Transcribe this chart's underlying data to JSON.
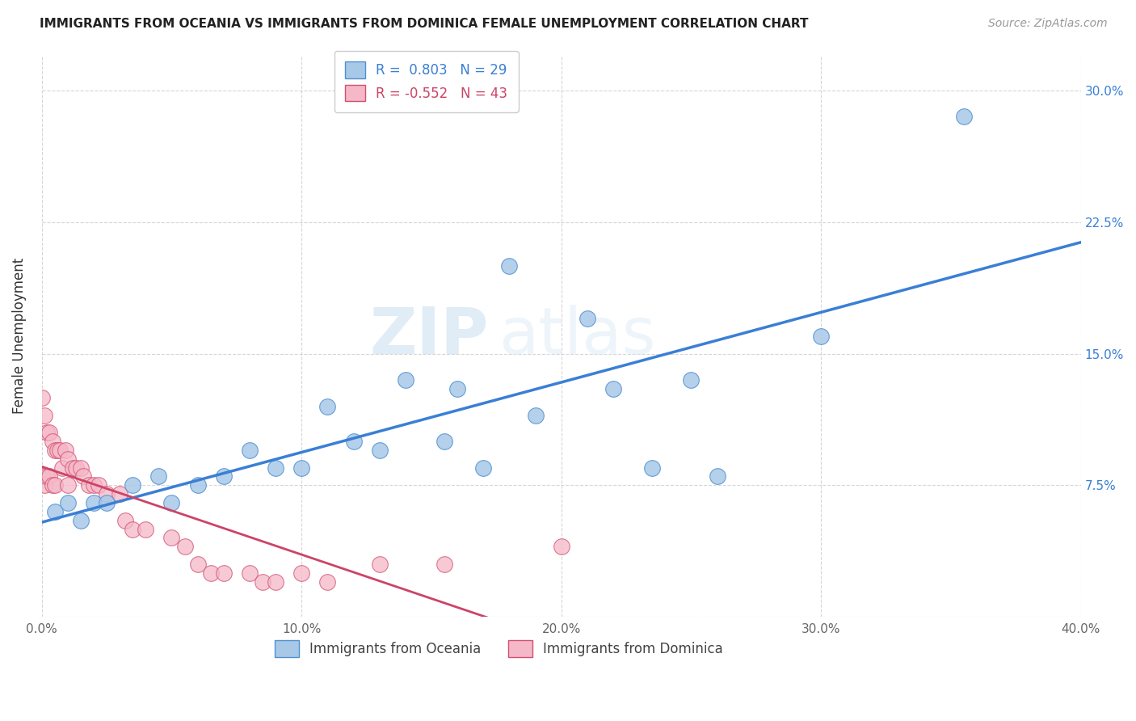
{
  "title": "IMMIGRANTS FROM OCEANIA VS IMMIGRANTS FROM DOMINICA FEMALE UNEMPLOYMENT CORRELATION CHART",
  "source": "Source: ZipAtlas.com",
  "ylabel": "Female Unemployment",
  "xlim": [
    0.0,
    40.0
  ],
  "ylim": [
    0.0,
    32.0
  ],
  "xticks": [
    0.0,
    10.0,
    20.0,
    30.0,
    40.0
  ],
  "xtick_labels": [
    "0.0%",
    "10.0%",
    "20.0%",
    "30.0%",
    "40.0%"
  ],
  "yticks": [
    0.0,
    7.5,
    15.0,
    22.5,
    30.0
  ],
  "left_ytick_labels": [
    "",
    "",
    "",
    "",
    ""
  ],
  "right_ytick_labels": [
    "",
    "7.5%",
    "15.0%",
    "22.5%",
    "30.0%"
  ],
  "oceania_color": "#a8c8e8",
  "dominica_color": "#f5b8c8",
  "oceania_edge_color": "#5090d0",
  "dominica_edge_color": "#d05070",
  "oceania_line_color": "#3a7fd5",
  "dominica_line_color": "#cc4466",
  "watermark_zip": "ZIP",
  "watermark_atlas": "atlas",
  "oceania_R": 0.803,
  "oceania_N": 29,
  "dominica_R": -0.552,
  "dominica_N": 43,
  "background_color": "#ffffff",
  "grid_color": "#cccccc",
  "oceania_x": [
    0.5,
    1.0,
    1.5,
    2.0,
    2.5,
    3.5,
    4.5,
    5.0,
    6.0,
    7.0,
    8.0,
    9.0,
    10.0,
    11.0,
    12.0,
    13.0,
    14.0,
    15.5,
    16.0,
    17.0,
    18.0,
    19.0,
    21.0,
    22.0,
    23.5,
    25.0,
    26.0,
    30.0,
    35.5
  ],
  "oceania_y": [
    6.0,
    6.5,
    5.5,
    6.5,
    6.5,
    7.5,
    8.0,
    6.5,
    7.5,
    8.0,
    9.5,
    8.5,
    8.5,
    12.0,
    10.0,
    9.5,
    13.5,
    10.0,
    13.0,
    8.5,
    20.0,
    11.5,
    17.0,
    13.0,
    8.5,
    13.5,
    8.0,
    16.0,
    28.5
  ],
  "dominica_x": [
    0.0,
    0.0,
    0.1,
    0.1,
    0.2,
    0.2,
    0.3,
    0.3,
    0.4,
    0.4,
    0.5,
    0.5,
    0.6,
    0.7,
    0.8,
    0.9,
    1.0,
    1.0,
    1.2,
    1.3,
    1.5,
    1.6,
    1.8,
    2.0,
    2.2,
    2.5,
    3.0,
    3.2,
    3.5,
    4.0,
    5.0,
    5.5,
    6.0,
    6.5,
    7.0,
    8.0,
    8.5,
    9.0,
    10.0,
    11.0,
    13.0,
    15.5,
    20.0
  ],
  "dominica_y": [
    12.5,
    8.0,
    11.5,
    7.5,
    10.5,
    8.0,
    10.5,
    8.0,
    10.0,
    7.5,
    9.5,
    7.5,
    9.5,
    9.5,
    8.5,
    9.5,
    9.0,
    7.5,
    8.5,
    8.5,
    8.5,
    8.0,
    7.5,
    7.5,
    7.5,
    7.0,
    7.0,
    5.5,
    5.0,
    5.0,
    4.5,
    4.0,
    3.0,
    2.5,
    2.5,
    2.5,
    2.0,
    2.0,
    2.5,
    2.0,
    3.0,
    3.0,
    4.0
  ]
}
